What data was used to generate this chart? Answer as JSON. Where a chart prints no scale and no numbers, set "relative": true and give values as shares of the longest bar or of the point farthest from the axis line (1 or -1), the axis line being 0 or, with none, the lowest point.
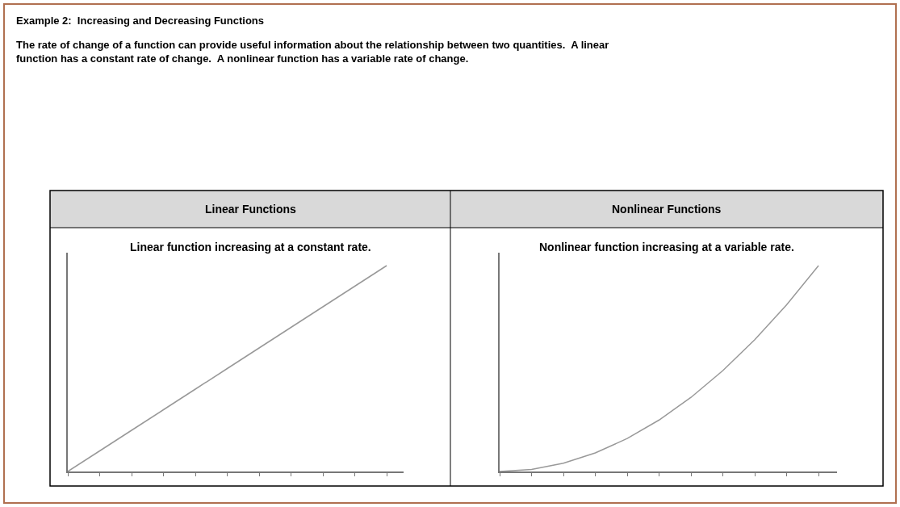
{
  "chart_data": [
    {
      "type": "line",
      "title": "Linear function increasing at a constant rate.",
      "relative": true,
      "annotations": [
        "Example 2:  Increasing and Decreasing Functions",
        "The rate of change of a function can provide useful information about the relationship between two quantities.  A linear function has a constant rate of change.  A nonlinear function has a variable rate of change.",
        "Linear Functions"
      ],
      "categories": [
        null,
        null,
        null,
        null,
        null,
        null,
        null,
        null,
        null,
        null,
        null
      ],
      "series": [
        {
          "color": "#999999",
          "values": [
            0,
            0.1,
            0.2,
            0.3,
            0.4,
            0.5,
            0.6,
            0.7,
            0.8,
            0.9,
            1
          ]
        }
      ]
    },
    {
      "type": "line",
      "title": "Nonlinear function increasing at a variable rate.",
      "relative": true,
      "annotations": [
        "Nonlinear Functions"
      ],
      "categories": [
        null,
        null,
        null,
        null,
        null,
        null,
        null,
        null,
        null,
        null,
        null
      ],
      "series": [
        {
          "color": "#999999",
          "values": [
            0,
            0.01,
            0.04,
            0.09,
            0.16,
            0.25,
            0.36,
            0.49,
            0.64,
            0.81,
            1
          ]
        }
      ]
    }
  ]
}
